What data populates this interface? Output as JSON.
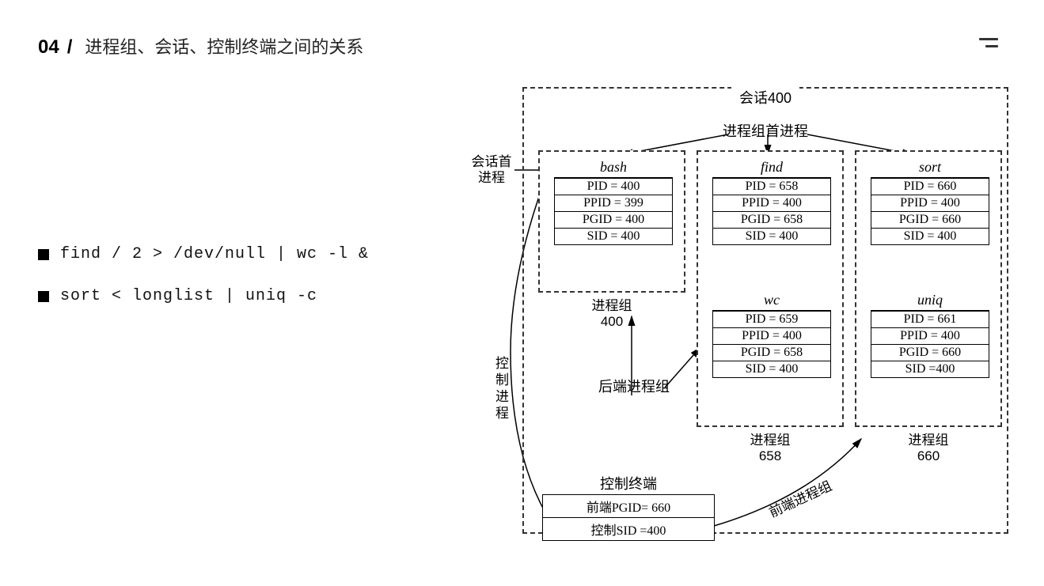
{
  "header": {
    "section_number": "04",
    "slash": "/",
    "title": "进程组、会话、控制终端之间的关系"
  },
  "commands": [
    "find / 2 > /dev/null | wc -l &",
    "sort < longlist | uniq -c"
  ],
  "diagram": {
    "session": {
      "label": "会话400",
      "leader_label": "进程组首进程",
      "session_leader_label": "会话首\n进程",
      "ctrl_process_label": "控制进程",
      "back_pg_label": "后端进程组",
      "front_pg_label": "前端进程组"
    },
    "process_groups": {
      "pg400": {
        "caption_label": "进程组",
        "caption_id": "400",
        "processes": {
          "bash": {
            "name": "bash",
            "rows": [
              "PID = 400",
              "PPID = 399",
              "PGID = 400",
              "SID = 400"
            ]
          }
        }
      },
      "pg658": {
        "caption_label": "进程组",
        "caption_id": "658",
        "processes": {
          "find": {
            "name": "find",
            "rows": [
              "PID = 658",
              "PPID = 400",
              "PGID = 658",
              "SID = 400"
            ]
          },
          "wc": {
            "name": "wc",
            "rows": [
              "PID = 659",
              "PPID = 400",
              "PGID = 658",
              "SID = 400"
            ]
          }
        }
      },
      "pg660": {
        "caption_label": "进程组",
        "caption_id": "660",
        "processes": {
          "sort": {
            "name": "sort",
            "rows": [
              "PID = 660",
              "PPID = 400",
              "PGID = 660",
              "SID = 400"
            ]
          },
          "uniq": {
            "name": "uniq",
            "rows": [
              "PID = 661",
              "PPID = 400",
              "PGID = 660",
              "SID =400"
            ]
          }
        }
      }
    },
    "controlling_terminal": {
      "title": "控制终端",
      "rows": [
        "前端PGID=  660",
        "控制SID =400"
      ]
    },
    "colors": {
      "background": "#ffffff",
      "border": "#333333",
      "text": "#000000"
    }
  }
}
